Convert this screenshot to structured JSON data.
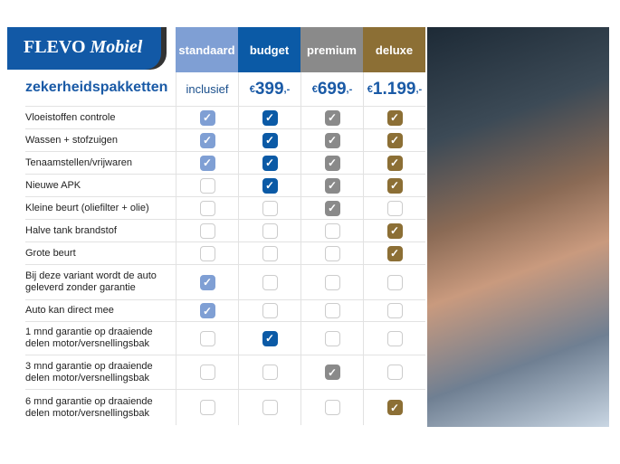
{
  "brand": {
    "name1": "FLEVO",
    "name2": "Mobiel"
  },
  "title": "zekerheidspakketten",
  "packages": [
    {
      "name": "standaard",
      "price": "inclusief",
      "color": "#7f9fd4"
    },
    {
      "name": "budget",
      "price": "399",
      "color": "#0b5aa6"
    },
    {
      "name": "premium",
      "price": "699",
      "color": "#8a8a8a"
    },
    {
      "name": "deluxe",
      "price": "1.199",
      "color": "#8c6f35"
    }
  ],
  "currency": "€",
  "price_suffix": ",-",
  "features": [
    {
      "label": "Vloeistoffen controle",
      "checks": [
        1,
        1,
        1,
        1
      ]
    },
    {
      "label": "Wassen + stofzuigen",
      "checks": [
        1,
        1,
        1,
        1
      ]
    },
    {
      "label": "Tenaamstellen/vrijwaren",
      "checks": [
        1,
        1,
        1,
        1
      ]
    },
    {
      "label": "Nieuwe APK",
      "checks": [
        0,
        1,
        1,
        1
      ]
    },
    {
      "label": "Kleine beurt (oliefilter + olie)",
      "checks": [
        0,
        0,
        1,
        0
      ]
    },
    {
      "label": "Halve tank brandstof",
      "checks": [
        0,
        0,
        0,
        1
      ]
    },
    {
      "label": "Grote beurt",
      "checks": [
        0,
        0,
        0,
        1
      ]
    },
    {
      "label": "Bij deze variant wordt de auto geleverd zonder garantie",
      "checks": [
        1,
        0,
        0,
        0
      ]
    },
    {
      "label": "Auto kan direct mee",
      "checks": [
        1,
        0,
        0,
        0
      ]
    },
    {
      "label": "1 mnd garantie op draaiende delen motor/versnellingsbak",
      "checks": [
        0,
        1,
        0,
        0
      ]
    },
    {
      "label": "3 mnd garantie op draaiende delen motor/versnellingsbak",
      "checks": [
        0,
        0,
        1,
        0
      ]
    },
    {
      "label": "6 mnd garantie op draaiende delen motor/versnellingsbak",
      "checks": [
        0,
        0,
        0,
        1
      ]
    }
  ]
}
